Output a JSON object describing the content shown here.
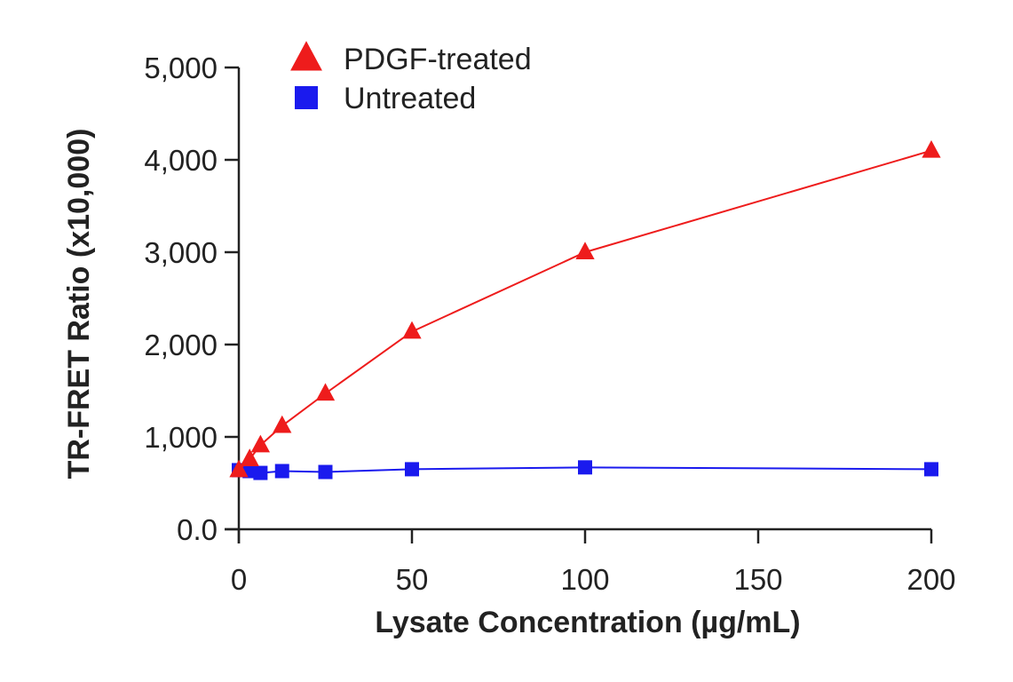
{
  "chart_data": {
    "type": "line",
    "xlabel": "Lysate Concentration (µg/mL)",
    "ylabel": "TR-FRET Ratio (x10,000)",
    "xlim": [
      0,
      200
    ],
    "ylim": [
      0,
      5000
    ],
    "x_ticks": [
      0,
      50,
      100,
      150,
      200
    ],
    "x_tick_labels": [
      "0",
      "50",
      "100",
      "150",
      "200"
    ],
    "y_ticks": [
      0,
      1000,
      2000,
      3000,
      4000,
      5000
    ],
    "y_tick_labels": [
      "0.0",
      "1,000",
      "2,000",
      "3,000",
      "4,000",
      "5,000"
    ],
    "grid": false,
    "legend_position": "top-left",
    "series": [
      {
        "name": "PDGF-treated",
        "color": "#ee1c1c",
        "marker": "triangle",
        "x": [
          0,
          3.125,
          6.25,
          12.5,
          25,
          50,
          100,
          200
        ],
        "y": [
          640,
          760,
          910,
          1120,
          1470,
          2140,
          3000,
          4100
        ]
      },
      {
        "name": "Untreated",
        "color": "#1a1aee",
        "marker": "square",
        "x": [
          0,
          3.125,
          6.25,
          12.5,
          25,
          50,
          100,
          200
        ],
        "y": [
          640,
          630,
          610,
          630,
          620,
          650,
          670,
          650
        ]
      }
    ]
  }
}
